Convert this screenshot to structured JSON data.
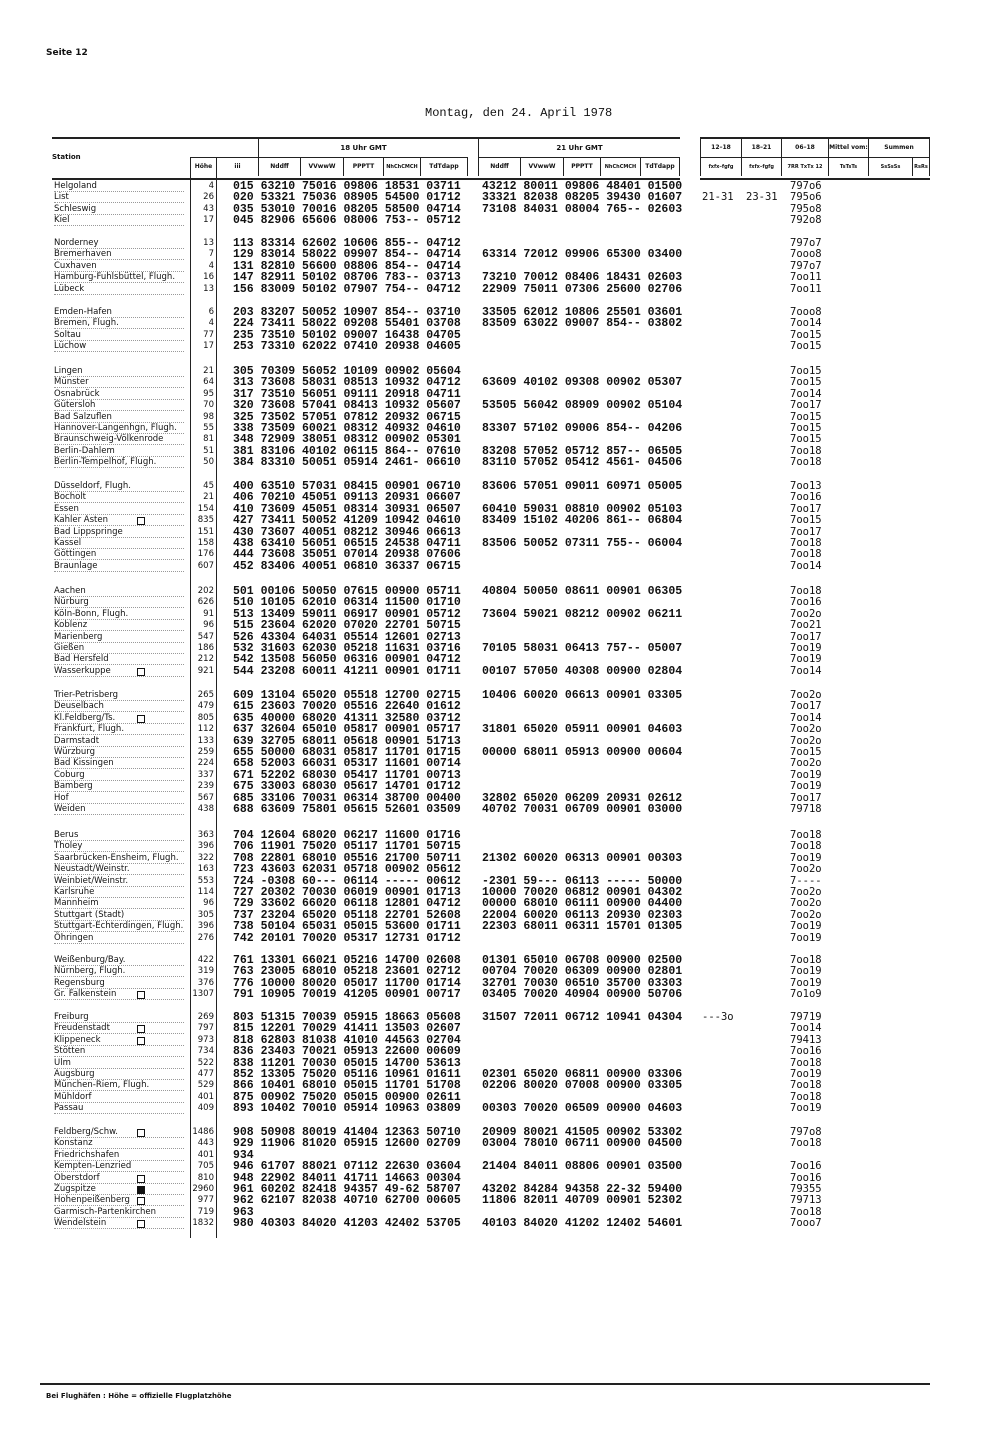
{
  "page": {
    "seite": "Seite 12",
    "date": "Montag, den 24. April 1978",
    "footnote": "Bei Flughäfen : Höhe = offizielle Flugplatzhöhe"
  },
  "header": {
    "station": "Station",
    "hoehe": "Höhe",
    "iii": "iii",
    "group18": "18 Uhr GMT",
    "group21": "21 Uhr GMT",
    "cols": [
      "Nddff",
      "VVwwW",
      "PPPTT",
      "NhChCMCH",
      "TdTdapp"
    ],
    "c1218": "12–18",
    "c1821": "18–21",
    "c0618": "06–18",
    "mittel": "Mittel vom:",
    "summen": "Summen",
    "s1218": "fxfx–fgfg",
    "s1821": "fxfx–fgfg",
    "s0618": "7RR TxTx 12",
    "sT": "TsTsTs",
    "sS": "SsSsSs",
    "sR": "RsRs"
  },
  "groups": [
    [
      {
        "station": "Helgoland",
        "hoehe": "4",
        "iii": "015",
        "g18": "63210 75016 09806 18531 03711",
        "g21": "43212 80011 09806 48401 01500",
        "c0618": "797o6"
      },
      {
        "station": "List",
        "hoehe": "26",
        "iii": "020",
        "g18": "53321 75036 08905 54500 01712",
        "g21": "33321 82038 08205 39430 01607",
        "c1218": "21-31",
        "c1821": "23-31",
        "c0618": "795o6"
      },
      {
        "station": "Schleswig",
        "hoehe": "43",
        "iii": "035",
        "g18": "53010 70016 08205 58500 04714",
        "g21": "73108 84031 08004 765-- 02603",
        "c0618": "795o8"
      },
      {
        "station": "Kiel",
        "hoehe": "17",
        "iii": "045",
        "g18": "82906 65606 08006 753-- 05712",
        "c0618": "792o8"
      }
    ],
    [
      {
        "station": "Norderney",
        "hoehe": "13",
        "iii": "113",
        "g18": "83314 62602 10606 855-- 04712",
        "c0618": "797o7"
      },
      {
        "station": "Bremerhaven",
        "hoehe": "7",
        "iii": "129",
        "g18": "83014 58022 09907 854-- 04714",
        "g21": "63314 72012 09906 65300 03400",
        "c0618": "7ooo8"
      },
      {
        "station": "Cuxhaven",
        "hoehe": "4",
        "iii": "131",
        "g18": "82810 56600 08806 854-- 04714",
        "c0618": "797o7"
      },
      {
        "station": "Hamburg-Fuhlsbüttel, Flugh.",
        "hoehe": "16",
        "iii": "147",
        "g18": "82911 50102 08706 783-- 03713",
        "g21": "73210 70012 08406 18431 02603",
        "c0618": "7oo11"
      },
      {
        "station": "Lübeck",
        "hoehe": "13",
        "iii": "156",
        "g18": "83009 50102 07907 754-- 04712",
        "g21": "22909 75011 07306 25600 02706",
        "c0618": "7oo11"
      }
    ],
    [
      {
        "station": "Emden-Hafen",
        "hoehe": "6",
        "iii": "203",
        "g18": "83207 50052 10907 854-- 03710",
        "g21": "33505 62012 10806 25501 03601",
        "c0618": "7ooo8"
      },
      {
        "station": "Bremen, Flugh.",
        "hoehe": "4",
        "iii": "224",
        "g18": "73411 58022 09208 55401 03708",
        "g21": "83509 63022 09007 854-- 03802",
        "c0618": "7oo14"
      },
      {
        "station": "Soltau",
        "hoehe": "77",
        "iii": "235",
        "g18": "73510 50102 09007 16438 04705",
        "c0618": "7oo15"
      },
      {
        "station": "Lüchow",
        "hoehe": "17",
        "iii": "253",
        "g18": "73310 62022 07410 20938 04605",
        "c0618": "7oo15"
      }
    ],
    [
      {
        "station": "Lingen",
        "hoehe": "21",
        "iii": "305",
        "g18": "70309 56052 10109 00902 05604",
        "c0618": "7oo15"
      },
      {
        "station": "Münster",
        "hoehe": "64",
        "iii": "313",
        "g18": "73608 58031 08513 10932 04712",
        "g21": "63609 40102 09308 00902 05307",
        "c0618": "7oo15"
      },
      {
        "station": "Osnabrück",
        "hoehe": "95",
        "iii": "317",
        "g18": "73510 56051 09111 20918 04711",
        "c0618": "7oo14"
      },
      {
        "station": "Gütersloh",
        "hoehe": "70",
        "iii": "320",
        "g18": "73608 57041 08413 10932 05607",
        "g21": "53505 56042 08909 00902 05104",
        "c0618": "7oo17"
      },
      {
        "station": "Bad Salzuflen",
        "hoehe": "98",
        "iii": "325",
        "g18": "73502 57051 07812 20932 06715",
        "c0618": "7oo15"
      },
      {
        "station": "Hannover-Langenhgn, Flugh.",
        "hoehe": "55",
        "iii": "338",
        "g18": "73509 60021 08312 40932 04610",
        "g21": "83307 57102 09006 854-- 04206",
        "c0618": "7oo15"
      },
      {
        "station": "Braunschweig-Völkenrode",
        "hoehe": "81",
        "iii": "348",
        "g18": "72909 38051 08312 00902 05301",
        "c0618": "7oo15"
      },
      {
        "station": "Berlin-Dahlem",
        "hoehe": "51",
        "iii": "381",
        "g18": "83106 40102 06115 864-- 07610",
        "g21": "83208 57052 05712 857-- 06505",
        "c0618": "7oo18"
      },
      {
        "station": "Berlin-Tempelhof, Flugh.",
        "hoehe": "50",
        "iii": "384",
        "g18": "83310 50051 05914 2461- 06610",
        "g21": "83110 57052 05412 4561- 04506",
        "c0618": "7oo18"
      }
    ],
    [
      {
        "station": "Düsseldorf, Flugh.",
        "hoehe": "45",
        "iii": "400",
        "g18": "63510 57031 08415 00901 06710",
        "g21": "83606 57051 09011 60971 05005",
        "c0618": "7oo13"
      },
      {
        "station": "Bocholt",
        "hoehe": "21",
        "iii": "406",
        "g18": "70210 45051 09113 20931 06607",
        "c0618": "7oo16"
      },
      {
        "station": "Essen",
        "hoehe": "154",
        "iii": "410",
        "g18": "73609 45051 08314 30931 06507",
        "g21": "60410 59031 08810 00902 05103",
        "c0618": "7oo17"
      },
      {
        "station": "Kahler Asten",
        "marker": "box",
        "hoehe": "835",
        "iii": "427",
        "g18": "73411 50052 41209 10942 04610",
        "g21": "83409 15102 40206 861-- 06804",
        "c0618": "7oo15"
      },
      {
        "station": "Bad Lippspringe",
        "hoehe": "151",
        "iii": "430",
        "g18": "73607 40051 08212 30946 06613",
        "c0618": "7oo17"
      },
      {
        "station": "Kassel",
        "hoehe": "158",
        "iii": "438",
        "g18": "63410 56051 06515 24538 04711",
        "g21": "83506 50052 07311 755-- 06004",
        "c0618": "7oo18"
      },
      {
        "station": "Göttingen",
        "hoehe": "176",
        "iii": "444",
        "g18": "73608 35051 07014 20938 07606",
        "c0618": "7oo18"
      },
      {
        "station": "Braunlage",
        "hoehe": "607",
        "iii": "452",
        "g18": "83406 40051 06810 36337 06715",
        "c0618": "7oo14"
      }
    ],
    [
      {
        "station": "Aachen",
        "hoehe": "202",
        "iii": "501",
        "g18": "00106 50050 07615 00900 05711",
        "g21": "40804 50050 08611 00901 06305",
        "c0618": "7oo18"
      },
      {
        "station": "Nürburg",
        "hoehe": "626",
        "iii": "510",
        "g18": "10105 62010 06314 11500 01710",
        "c0618": "7oo16"
      },
      {
        "station": "Köln-Bonn, Flugh.",
        "hoehe": "91",
        "iii": "513",
        "g18": "13409 59011 06917 00901 05712",
        "g21": "73604 59021 08212 00902 06211",
        "c0618": "7oo2o"
      },
      {
        "station": "Koblenz",
        "hoehe": "96",
        "iii": "515",
        "g18": "23604 62020 07020 22701 50715",
        "c0618": "7oo21"
      },
      {
        "station": "Marienberg",
        "hoehe": "547",
        "iii": "526",
        "g18": "43304 64031 05514 12601 02713",
        "c0618": "7oo17"
      },
      {
        "station": "Gießen",
        "hoehe": "186",
        "iii": "532",
        "g18": "31603 62030 05218 11631 03716",
        "g21": "70105 58031 06413 757-- 05007",
        "c0618": "7oo19"
      },
      {
        "station": "Bad Hersfeld",
        "hoehe": "212",
        "iii": "542",
        "g18": "13508 56050 06316 00901 04712",
        "c0618": "7oo19"
      },
      {
        "station": "Wasserkuppe",
        "marker": "box",
        "hoehe": "921",
        "iii": "544",
        "g18": "23208 60011 41211 00901 01711",
        "g21": "00107 57050 40308 00900 02804",
        "c0618": "7oo14"
      }
    ],
    [
      {
        "station": "Trier-Petrisberg",
        "hoehe": "265",
        "iii": "609",
        "g18": "13104 65020 05518 12700 02715",
        "g21": "10406 60020 06613 00901 03305",
        "c0618": "7oo2o"
      },
      {
        "station": "Deuselbach",
        "hoehe": "479",
        "iii": "615",
        "g18": "23603 70020 05516 22640 01612",
        "c0618": "7oo17"
      },
      {
        "station": "Kl.Feldberg/Ts.",
        "marker": "box",
        "hoehe": "805",
        "iii": "635",
        "g18": "40000 68020 41311 32580 03712",
        "c0618": "7oo14"
      },
      {
        "station": "Frankfurt, Flugh.",
        "hoehe": "112",
        "iii": "637",
        "g18": "32604 65010 05817 00901 05717",
        "g21": "31801 65020 05911 00901 04603",
        "c0618": "7oo2o"
      },
      {
        "station": "Darmstadt",
        "hoehe": "133",
        "iii": "639",
        "g18": "32705 68011 05618 00901 51713",
        "c0618": "7oo2o"
      },
      {
        "station": "Würzburg",
        "hoehe": "259",
        "iii": "655",
        "g18": "50000 68031 05817 11701 01715",
        "g21": "00000 68011 05913 00900 00604",
        "c0618": "7oo15"
      },
      {
        "station": "Bad Kissingen",
        "hoehe": "224",
        "iii": "658",
        "g18": "52003 66031 05317 11601 00714",
        "c0618": "7oo2o"
      },
      {
        "station": "Coburg",
        "hoehe": "337",
        "iii": "671",
        "g18": "52202 68030 05417 11701 00713",
        "c0618": "7oo19"
      },
      {
        "station": "Bamberg",
        "hoehe": "239",
        "iii": "675",
        "g18": "33003 68030 05617 14701 01712",
        "c0618": "7oo19"
      },
      {
        "station": "Hof",
        "hoehe": "567",
        "iii": "685",
        "g18": "33106 70031 06314 38700 00400",
        "g21": "32802 65020 06209 20931 02612",
        "c0618": "7oo17"
      },
      {
        "station": "Weiden",
        "hoehe": "438",
        "iii": "688",
        "g18": "63609 75801 05615 52601 03509",
        "g21": "40702 70031 06709 00901 03000",
        "c0618": "79718"
      }
    ],
    [
      {
        "station": "Berus",
        "hoehe": "363",
        "iii": "704",
        "g18": "12604 68020 06217 11600 01716",
        "c0618": "7oo18"
      },
      {
        "station": "Tholey",
        "hoehe": "396",
        "iii": "706",
        "g18": "11901 75020 05117 11701 50715",
        "c0618": "7oo18"
      },
      {
        "station": "Saarbrücken-Ensheim, Flugh.",
        "hoehe": "322",
        "iii": "708",
        "g18": "22801 68010 05516 21700 50711",
        "g21": "21302 60020 06313 00901 00303",
        "c0618": "7oo19"
      },
      {
        "station": "Neustadt/Weinstr.",
        "hoehe": "163",
        "iii": "723",
        "g18": "43603 62031 05718 00902 05612",
        "c0618": "7oo2o"
      },
      {
        "station": "Weinbiet/Weinstr.",
        "hoehe": "553",
        "iii": "724",
        "g18": "-0308 60--- 06114 ----- 00612",
        "g21": "-2301 59--- 06113 ----- 50000",
        "c0618": "7----"
      },
      {
        "station": "Karlsruhe",
        "hoehe": "114",
        "iii": "727",
        "g18": "20302 70030 06019 00901 01713",
        "g21": "10000 70020 06812 00901 04302",
        "c0618": "7oo2o"
      },
      {
        "station": "Mannheim",
        "hoehe": "96",
        "iii": "729",
        "g18": "33602 66020 06118 12801 04712",
        "g21": "00000 68010 06111 00900 04400",
        "c0618": "7oo2o"
      },
      {
        "station": "Stuttgart (Stadt)",
        "hoehe": "305",
        "iii": "737",
        "g18": "23204 65020 05118 22701 52608",
        "g21": "22004 60020 06113 20930 02303",
        "c0618": "7oo2o"
      },
      {
        "station": "Stuttgart-Echterdingen, Flugh.",
        "hoehe": "396",
        "iii": "738",
        "g18": "50104 65031 05015 53600 01711",
        "g21": "22303 68011 06311 15701 01305",
        "c0618": "7oo19"
      },
      {
        "station": "Öhringen",
        "hoehe": "276",
        "iii": "742",
        "g18": "20101 70020 05317 12731 01712",
        "c0618": "7oo19"
      }
    ],
    [
      {
        "station": "Weißenburg/Bay.",
        "hoehe": "422",
        "iii": "761",
        "g18": "13301 66021 05216 14700 02608",
        "g21": "01301 65010 06708 00900 02500",
        "c0618": "7oo18"
      },
      {
        "station": "Nürnberg, Flugh.",
        "hoehe": "319",
        "iii": "763",
        "g18": "23005 68010 05218 23601 02712",
        "g21": "00704 70020 06309 00900 02801",
        "c0618": "7oo19"
      },
      {
        "station": "Regensburg",
        "hoehe": "376",
        "iii": "776",
        "g18": "10000 80020 05017 11700 01714",
        "g21": "32701 70030 06510 35700 03303",
        "c0618": "7oo19"
      },
      {
        "station": "Gr. Falkenstein",
        "marker": "box",
        "hoehe": "1307",
        "iii": "791",
        "g18": "10905 70019 41205 00901 00717",
        "g21": "03405 70020 40904 00900 50706",
        "c0618": "7o1o9"
      }
    ],
    [
      {
        "station": "Freiburg",
        "hoehe": "269",
        "iii": "803",
        "g18": "51315 70039 05915 18663 05608",
        "g21": "31507 72011 06712 10941 04304",
        "c1218": "---3o",
        "c0618": "79719"
      },
      {
        "station": "Freudenstadt",
        "marker": "box",
        "hoehe": "797",
        "iii": "815",
        "g18": "12201 70029 41411 13503 02607",
        "c0618": "7oo14"
      },
      {
        "station": "Klippeneck",
        "marker": "box",
        "hoehe": "973",
        "iii": "818",
        "g18": "62803 81038 41010 44563 02704",
        "c0618": "79413"
      },
      {
        "station": "Stötten",
        "hoehe": "734",
        "iii": "836",
        "g18": "23403 70021 05913 22600 00609",
        "c0618": "7oo16"
      },
      {
        "station": "Ulm",
        "hoehe": "522",
        "iii": "838",
        "g18": "11201 70030 05015 14700 53613",
        "c0618": "7oo18"
      },
      {
        "station": "Augsburg",
        "hoehe": "477",
        "iii": "852",
        "g18": "13305 75020 05116 10961 01611",
        "g21": "02301 65020 06811 00900 03306",
        "c0618": "7oo19"
      },
      {
        "station": "München-Riem, Flugh.",
        "hoehe": "529",
        "iii": "866",
        "g18": "10401 68010 05015 11701 51708",
        "g21": "02206 80020 07008 00900 03305",
        "c0618": "7oo18"
      },
      {
        "station": "Mühldorf",
        "hoehe": "401",
        "iii": "875",
        "g18": "00902 75020 05015 00900 02611",
        "c0618": "7oo18"
      },
      {
        "station": "Passau",
        "hoehe": "409",
        "iii": "893",
        "g18": "10402 70010 05914 10963 03809",
        "g21": "00303 70020 06509 00900 04603",
        "c0618": "7oo19"
      }
    ],
    [
      {
        "station": "Feldberg/Schw.",
        "marker": "box",
        "hoehe": "1486",
        "iii": "908",
        "g18": "50908 80019 41404 12363 50710",
        "g21": "20909 80021 41505 00902 53302",
        "c0618": "797o8"
      },
      {
        "station": "Konstanz",
        "hoehe": "443",
        "iii": "929",
        "g18": "11906 81020 05915 12600 02709",
        "g21": "03004 78010 06711 00900 04500",
        "c0618": "7oo18"
      },
      {
        "station": "Friedrichshafen",
        "hoehe": "401",
        "iii": "934"
      },
      {
        "station": "Kempten-Lenzried",
        "hoehe": "705",
        "iii": "946",
        "g18": "61707 88021 07112 22630 03604",
        "g21": "21404 84011 08806 00901 03500",
        "c0618": "7oo16"
      },
      {
        "station": "Oberstdorf",
        "marker": "box",
        "hoehe": "810",
        "iii": "948",
        "g18": "22902 84011 41711 14663 00304",
        "c0618": "7oo16"
      },
      {
        "station": "Zugspitze",
        "marker": "filled",
        "hoehe": "2960",
        "iii": "961",
        "g18": "60202 82418 94357 49-62 58707",
        "g21": "43202 84284 94358 22-32 59400",
        "c0618": "79355"
      },
      {
        "station": "Hohenpeißenberg",
        "marker": "box",
        "hoehe": "977",
        "iii": "962",
        "g18": "62107 82038 40710 62700 00605",
        "g21": "11806 82011 40709 00901 52302",
        "c0618": "79713"
      },
      {
        "station": "Garmisch-Partenkirchen",
        "hoehe": "719",
        "iii": "963",
        "c0618": "7oo18"
      },
      {
        "station": "Wendelstein",
        "marker": "box",
        "hoehe": "1832",
        "iii": "980",
        "g18": "40303 84020 41203 42402 53705",
        "g21": "40103 84020 41202 12402 54601",
        "c0618": "7ooo7"
      }
    ]
  ]
}
